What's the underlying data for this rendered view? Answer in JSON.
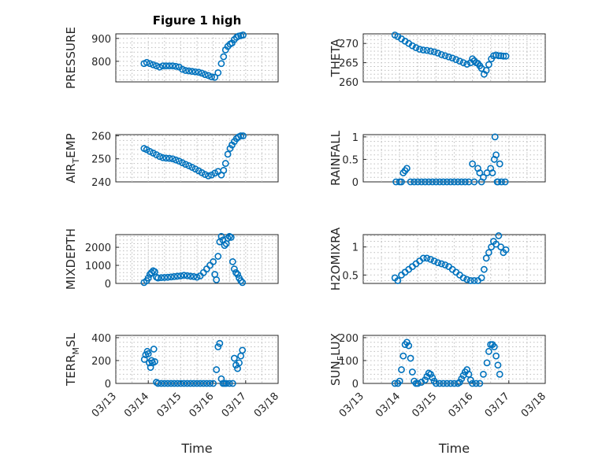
{
  "figure": {
    "title": "Figure 1 high",
    "marker_color": "#0072BD",
    "marker": "circle"
  },
  "chart_data": [
    {
      "type": "scatter",
      "id": "pressure",
      "ylabel": "PRESSURE",
      "ylabel_sub": "",
      "ylabel_post": "",
      "ylim": [
        710,
        920
      ],
      "yticks": [
        800,
        900
      ],
      "ytick_labels": [
        "800",
        "900"
      ],
      "xlim": [
        0,
        5
      ],
      "xticks": [],
      "xlabel": "",
      "grid": true,
      "x": [
        0.87,
        0.95,
        1.05,
        1.15,
        1.25,
        1.35,
        1.45,
        1.55,
        1.65,
        1.75,
        1.85,
        1.95,
        2.05,
        2.15,
        2.25,
        2.35,
        2.45,
        2.55,
        2.65,
        2.75,
        2.85,
        2.95,
        3.05,
        3.15,
        3.25,
        3.32,
        3.38,
        3.45,
        3.52,
        3.58,
        3.65,
        3.72,
        3.78,
        3.85,
        3.92
      ],
      "y": [
        790,
        795,
        790,
        785,
        780,
        775,
        780,
        780,
        780,
        780,
        778,
        775,
        765,
        760,
        758,
        756,
        754,
        752,
        748,
        742,
        738,
        732,
        730,
        750,
        790,
        820,
        850,
        865,
        875,
        880,
        895,
        905,
        910,
        912,
        915
      ]
    },
    {
      "type": "scatter",
      "id": "theta",
      "ylabel": "THETA",
      "ylabel_sub": "",
      "ylabel_post": "",
      "ylim": [
        260,
        272.5
      ],
      "yticks": [
        260,
        265,
        270
      ],
      "ytick_labels": [
        "260",
        "265",
        "270"
      ],
      "xlim": [
        0,
        5
      ],
      "xticks": [],
      "xlabel": "",
      "grid": true,
      "x": [
        0.87,
        0.95,
        1.05,
        1.15,
        1.25,
        1.35,
        1.45,
        1.55,
        1.65,
        1.75,
        1.85,
        1.95,
        2.05,
        2.15,
        2.25,
        2.35,
        2.45,
        2.55,
        2.65,
        2.75,
        2.85,
        2.95,
        3.0,
        3.05,
        3.1,
        3.15,
        3.2,
        3.25,
        3.32,
        3.38,
        3.45,
        3.52,
        3.58,
        3.65,
        3.72,
        3.78,
        3.85,
        3.92
      ],
      "y": [
        272.2,
        271.8,
        271.2,
        270.6,
        270,
        269.4,
        268.9,
        268.5,
        268.3,
        268.2,
        268,
        267.8,
        267.5,
        267.1,
        266.8,
        266.5,
        266.2,
        265.8,
        265.4,
        265,
        264.6,
        265,
        266,
        265.5,
        265,
        264.8,
        264.2,
        263.5,
        262,
        263,
        264.5,
        266,
        266.8,
        267,
        266.8,
        266.8,
        266.7,
        266.7
      ]
    },
    {
      "type": "scatter",
      "id": "air_temp",
      "ylabel": "AIR",
      "ylabel_sub": "T",
      "ylabel_post": "EMP",
      "ylim": [
        240,
        260.5
      ],
      "yticks": [
        240,
        250,
        260
      ],
      "ytick_labels": [
        "240",
        "250",
        "260"
      ],
      "xlim": [
        0,
        5
      ],
      "xticks": [],
      "xlabel": "",
      "grid": true,
      "x": [
        0.87,
        0.95,
        1.05,
        1.15,
        1.25,
        1.35,
        1.45,
        1.55,
        1.65,
        1.75,
        1.85,
        1.95,
        2.05,
        2.15,
        2.25,
        2.35,
        2.45,
        2.55,
        2.65,
        2.75,
        2.85,
        2.95,
        3.05,
        3.15,
        3.25,
        3.32,
        3.38,
        3.45,
        3.52,
        3.58,
        3.65,
        3.72,
        3.78,
        3.85,
        3.92
      ],
      "y": [
        254.5,
        254,
        253.2,
        252.5,
        251.8,
        251,
        250.5,
        250.3,
        250.2,
        250,
        249.5,
        249,
        248.3,
        247.6,
        247,
        246.3,
        245.6,
        244.8,
        244,
        243.2,
        242.6,
        243,
        243.8,
        244.5,
        243,
        245,
        248,
        252,
        254.5,
        256,
        257.5,
        258.8,
        259.5,
        260,
        260
      ]
    },
    {
      "type": "scatter",
      "id": "rainfall",
      "ylabel": "RAINFALL",
      "ylabel_sub": "",
      "ylabel_post": "",
      "ylim": [
        0,
        1.05
      ],
      "yticks": [
        0,
        0.5,
        1
      ],
      "ytick_labels": [
        "0",
        "0.5",
        "1"
      ],
      "xlim": [
        0,
        5
      ],
      "xticks": [],
      "xlabel": "",
      "grid": true,
      "x": [
        0.9,
        1.0,
        1.05,
        1.1,
        1.15,
        1.2,
        1.3,
        1.4,
        1.5,
        1.6,
        1.7,
        1.8,
        1.9,
        2.0,
        2.1,
        2.2,
        2.3,
        2.4,
        2.5,
        2.6,
        2.7,
        2.8,
        2.9,
        3.0,
        3.05,
        3.15,
        3.2,
        3.25,
        3.3,
        3.4,
        3.5,
        3.55,
        3.6,
        3.62,
        3.65,
        3.68,
        3.7,
        3.75,
        3.8,
        3.9
      ],
      "y": [
        0,
        0,
        0,
        0.2,
        0.25,
        0.3,
        0,
        0,
        0,
        0,
        0,
        0,
        0,
        0,
        0,
        0,
        0,
        0,
        0,
        0,
        0,
        0,
        0,
        0.4,
        0,
        0.3,
        0.2,
        0,
        0.1,
        0.2,
        0.3,
        0.2,
        0.5,
        1.0,
        0.6,
        0,
        0,
        0.4,
        0,
        0
      ]
    },
    {
      "type": "scatter",
      "id": "mixdepth",
      "ylabel": "MIXDEPTH",
      "ylabel_sub": "",
      "ylabel_post": "",
      "ylim": [
        0,
        2700
      ],
      "yticks": [
        0,
        1000,
        2000
      ],
      "ytick_labels": [
        "0",
        "1000",
        "2000"
      ],
      "xlim": [
        0,
        5
      ],
      "xticks": [],
      "xlabel": "",
      "grid": true,
      "x": [
        0.87,
        0.95,
        1.0,
        1.05,
        1.1,
        1.15,
        1.2,
        1.25,
        1.3,
        1.4,
        1.5,
        1.6,
        1.7,
        1.8,
        1.9,
        2.0,
        2.1,
        2.2,
        2.3,
        2.4,
        2.5,
        2.6,
        2.7,
        2.8,
        2.9,
        3.0,
        3.05,
        3.1,
        3.15,
        3.2,
        3.25,
        3.3,
        3.35,
        3.4,
        3.45,
        3.5,
        3.55,
        3.6,
        3.65,
        3.7,
        3.75,
        3.8,
        3.85,
        3.9
      ],
      "y": [
        50,
        150,
        300,
        500,
        600,
        700,
        650,
        350,
        300,
        320,
        330,
        340,
        360,
        380,
        400,
        420,
        450,
        430,
        400,
        380,
        350,
        420,
        600,
        800,
        1000,
        1200,
        500,
        200,
        1500,
        2300,
        2600,
        2400,
        2100,
        2200,
        2500,
        2600,
        2550,
        1200,
        800,
        600,
        500,
        300,
        150,
        50
      ]
    },
    {
      "type": "scatter",
      "id": "h2omixra",
      "ylabel": "H2OMIXRA",
      "ylabel_sub": "",
      "ylabel_post": "",
      "ylim": [
        0.35,
        1.22
      ],
      "yticks": [
        0.5,
        1
      ],
      "ytick_labels": [
        "0.5",
        "1"
      ],
      "xlim": [
        0,
        5
      ],
      "xticks": [],
      "xlabel": "",
      "grid": true,
      "x": [
        0.87,
        0.95,
        1.05,
        1.15,
        1.25,
        1.35,
        1.45,
        1.55,
        1.65,
        1.75,
        1.85,
        1.95,
        2.05,
        2.15,
        2.25,
        2.35,
        2.45,
        2.55,
        2.65,
        2.75,
        2.85,
        2.95,
        3.05,
        3.15,
        3.25,
        3.32,
        3.38,
        3.45,
        3.52,
        3.58,
        3.65,
        3.72,
        3.78,
        3.85,
        3.92
      ],
      "y": [
        0.45,
        0.4,
        0.5,
        0.55,
        0.6,
        0.65,
        0.7,
        0.75,
        0.8,
        0.8,
        0.78,
        0.75,
        0.72,
        0.7,
        0.68,
        0.65,
        0.6,
        0.55,
        0.5,
        0.45,
        0.42,
        0.4,
        0.4,
        0.4,
        0.45,
        0.6,
        0.8,
        0.9,
        1.0,
        1.1,
        1.05,
        1.2,
        1.0,
        0.9,
        0.95
      ]
    },
    {
      "type": "scatter",
      "id": "terr_msl",
      "ylabel": "TERR",
      "ylabel_sub": "M",
      "ylabel_post": "SL",
      "ylim": [
        0,
        420
      ],
      "yticks": [
        0,
        200,
        400
      ],
      "ytick_labels": [
        "0",
        "200",
        "400"
      ],
      "xlim": [
        0,
        5
      ],
      "xticks": [
        0,
        1,
        2,
        3,
        4,
        5
      ],
      "xtick_labels": [
        "03/13",
        "03/14",
        "03/15",
        "03/16",
        "03/17",
        "03/18"
      ],
      "xlabel": "Time",
      "grid": true,
      "x": [
        0.88,
        0.92,
        0.97,
        1.0,
        1.03,
        1.07,
        1.1,
        1.13,
        1.17,
        1.2,
        1.25,
        1.3,
        1.4,
        1.5,
        1.6,
        1.7,
        1.8,
        1.9,
        2.0,
        2.1,
        2.2,
        2.3,
        2.4,
        2.5,
        2.6,
        2.7,
        2.8,
        2.9,
        3.0,
        3.1,
        3.15,
        3.2,
        3.25,
        3.3,
        3.35,
        3.4,
        3.5,
        3.6,
        3.65,
        3.7,
        3.75,
        3.8,
        3.85,
        3.9
      ],
      "y": [
        210,
        250,
        280,
        260,
        180,
        140,
        200,
        180,
        300,
        190,
        10,
        0,
        0,
        0,
        0,
        0,
        0,
        0,
        0,
        0,
        0,
        0,
        0,
        0,
        0,
        0,
        0,
        0,
        0,
        120,
        320,
        350,
        40,
        0,
        0,
        0,
        0,
        0,
        220,
        160,
        130,
        180,
        240,
        290
      ]
    },
    {
      "type": "scatter",
      "id": "sun_flux",
      "ylabel": "SUN",
      "ylabel_sub": "F",
      "ylabel_post": "LUX",
      "ylim": [
        0,
        210
      ],
      "yticks": [
        0,
        100,
        200
      ],
      "ytick_labels": [
        "0",
        "100",
        "200"
      ],
      "xlim": [
        0,
        5
      ],
      "xticks": [
        0,
        1,
        2,
        3,
        4,
        5
      ],
      "xtick_labels": [
        "03/13",
        "03/14",
        "03/15",
        "03/16",
        "03/17",
        "03/18"
      ],
      "xlabel": "Time",
      "grid": true,
      "x": [
        0.87,
        0.95,
        1.0,
        1.05,
        1.1,
        1.15,
        1.2,
        1.25,
        1.3,
        1.35,
        1.4,
        1.45,
        1.5,
        1.6,
        1.7,
        1.75,
        1.8,
        1.85,
        1.9,
        1.95,
        2.0,
        2.1,
        2.2,
        2.3,
        2.4,
        2.5,
        2.6,
        2.65,
        2.7,
        2.75,
        2.8,
        2.85,
        2.9,
        2.95,
        3.0,
        3.1,
        3.2,
        3.3,
        3.4,
        3.45,
        3.5,
        3.55,
        3.6,
        3.65,
        3.7,
        3.75
      ],
      "y": [
        0,
        0,
        10,
        60,
        120,
        170,
        180,
        165,
        110,
        50,
        10,
        0,
        0,
        5,
        15,
        30,
        45,
        40,
        25,
        10,
        0,
        0,
        0,
        0,
        0,
        0,
        0,
        5,
        20,
        35,
        50,
        60,
        40,
        15,
        0,
        0,
        0,
        40,
        90,
        140,
        170,
        170,
        160,
        120,
        80,
        40
      ]
    }
  ]
}
